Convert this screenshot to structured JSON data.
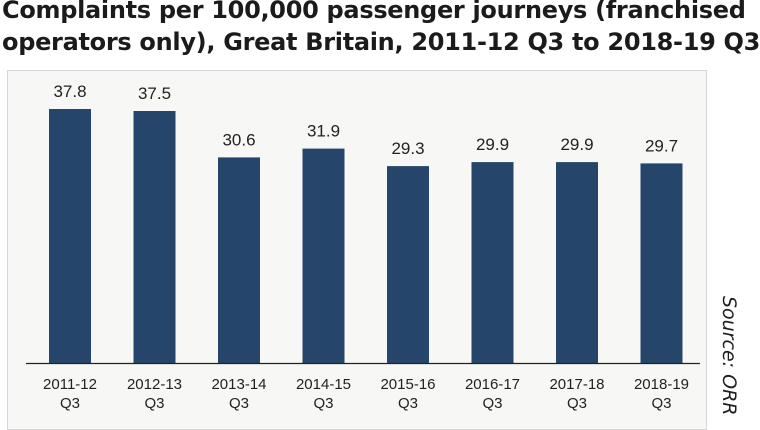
{
  "title_lines": [
    "Complaints per 100,000 passenger journeys (franchised",
    "operators only), Great Britain, 2011-12 Q3 to 2018-19 Q3"
  ],
  "source": "Source: ORR",
  "colors": {
    "bar": "#25466a",
    "panel": "#f7f7f6",
    "axis": "#222222"
  },
  "chart_data": {
    "type": "bar",
    "title": "Complaints per 100,000 passenger journeys (franchised operators only), Great Britain, 2011-12 Q3 to 2018-19 Q3",
    "categories": [
      [
        "2011-12",
        "Q3"
      ],
      [
        "2012-13",
        "Q3"
      ],
      [
        "2013-14",
        "Q3"
      ],
      [
        "2014-15",
        "Q3"
      ],
      [
        "2015-16",
        "Q3"
      ],
      [
        "2016-17",
        "Q3"
      ],
      [
        "2017-18",
        "Q3"
      ],
      [
        "2018-19",
        "Q3"
      ]
    ],
    "values": [
      37.8,
      37.5,
      30.6,
      31.9,
      29.3,
      29.9,
      29.9,
      29.7
    ],
    "value_labels": [
      "37.8",
      "37.5",
      "30.6",
      "31.9",
      "29.3",
      "29.9",
      "29.9",
      "29.7"
    ],
    "ylim": [
      0,
      37.8
    ],
    "grid": false,
    "xlabel": "",
    "ylabel": ""
  }
}
